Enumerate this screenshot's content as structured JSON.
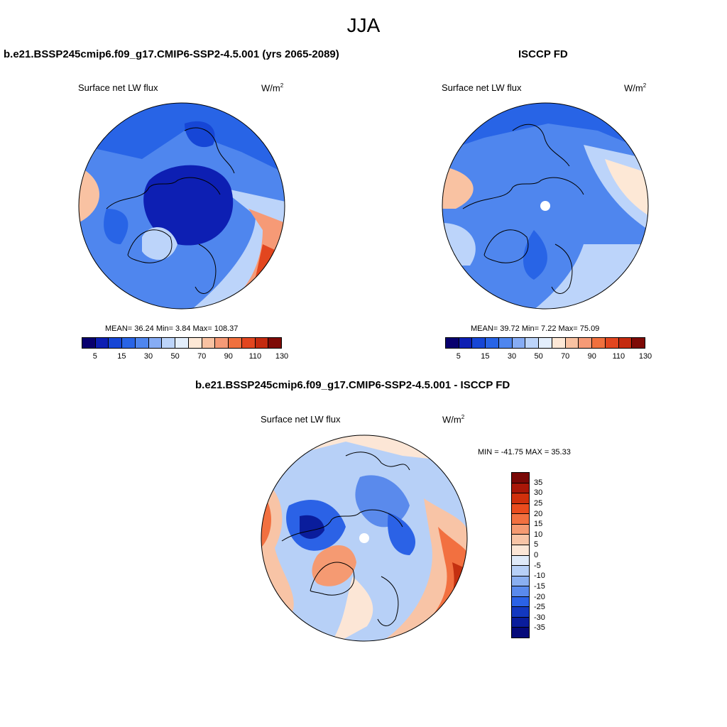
{
  "suptitle": "JJA",
  "panels": [
    {
      "title": "b.e21.BSSP245cmip6.f09_g17.CMIP6-SSP2-4.5.001 (yrs 2065-2089)",
      "variable": "Surface net LW flux",
      "units_base": "W/m",
      "units_exp": "2",
      "stats": "MEAN=  36.24  Min=   3.84  Max= 108.37",
      "colorbar_ticks": [
        "5",
        "15",
        "30",
        "50",
        "70",
        "90",
        "110",
        "130"
      ]
    },
    {
      "title": "ISCCP FD",
      "variable": "Surface net LW flux",
      "units_base": "W/m",
      "units_exp": "2",
      "stats": "MEAN=  39.72  Min=   7.22  Max=  75.09",
      "colorbar_ticks": [
        "5",
        "15",
        "30",
        "50",
        "70",
        "90",
        "110",
        "130"
      ]
    },
    {
      "title": "b.e21.BSSP245cmip6.f09_g17.CMIP6-SSP2-4.5.001 - ISCCP FD",
      "variable": "Surface net LW flux",
      "units_base": "W/m",
      "units_exp": "2",
      "stats": "MIN = -41.75 MAX =  35.33",
      "colorbar_ticks": [
        "35",
        "30",
        "25",
        "20",
        "15",
        "10",
        "5",
        "0",
        "-5",
        "-10",
        "-15",
        "-20",
        "-25",
        "-30",
        "-35"
      ]
    }
  ],
  "colors": {
    "abs_scale": [
      "#08006e",
      "#0d1fb3",
      "#1646d6",
      "#2864e6",
      "#4f86ee",
      "#86acf4",
      "#bcd4fa",
      "#e3eefc",
      "#fde8d6",
      "#f9c2a2",
      "#f69a76",
      "#f0703e",
      "#e2461f",
      "#c42a0f",
      "#7e0a06"
    ],
    "diff_scale": [
      "#7a0806",
      "#a91708",
      "#d0300c",
      "#ea4c1e",
      "#f27040",
      "#f59a72",
      "#f8c4a6",
      "#fce6d6",
      "#dfeaf9",
      "#b7d0f7",
      "#8aaff0",
      "#5a8aec",
      "#2b62e6",
      "#1338c0",
      "#0a1d9c",
      "#060a7a"
    ],
    "ocean_strong": "#1a47d8",
    "ocean_mid": "#4f86ee",
    "ocean_light": "#bcd4fa",
    "warm": "#f4a283"
  }
}
